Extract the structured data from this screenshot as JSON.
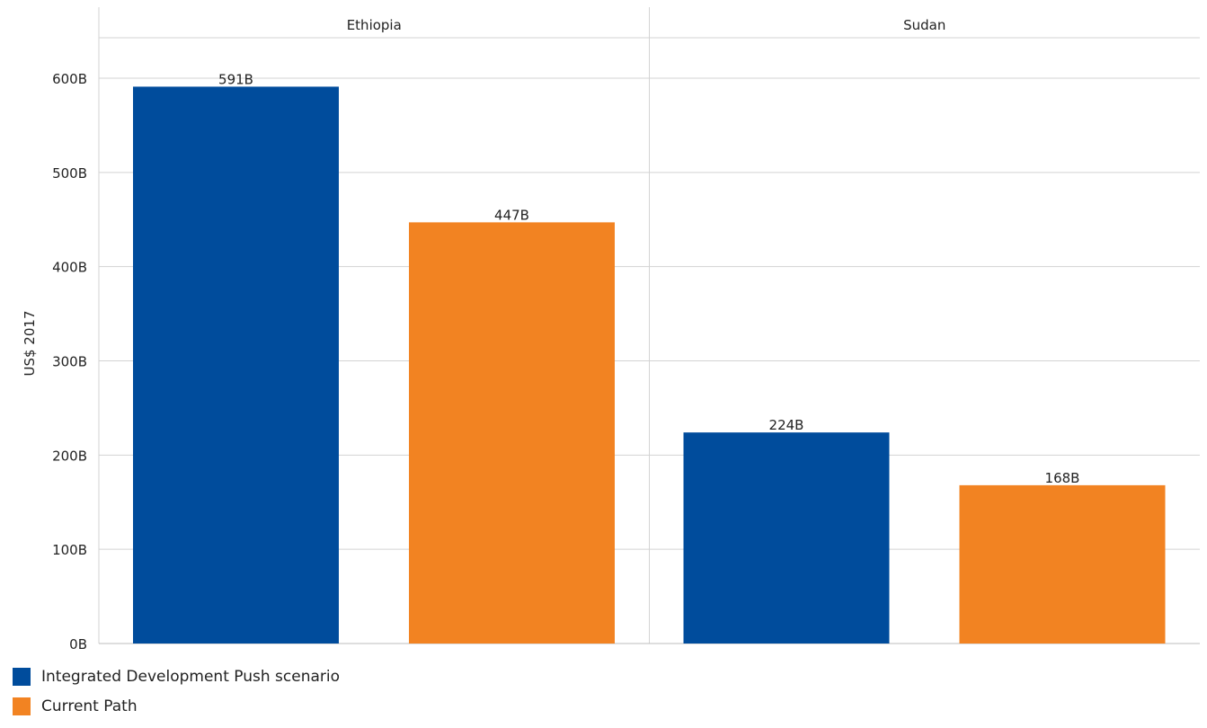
{
  "chart_data": {
    "type": "bar",
    "ylabel": "US$ 2017",
    "panels": [
      "Ethiopia",
      "Sudan"
    ],
    "series": [
      {
        "name": "Integrated Development Push scenario",
        "color": "#004c9c",
        "values": [
          591,
          224
        ]
      },
      {
        "name": "Current Path",
        "color": "#f28322",
        "values": [
          447,
          168
        ]
      }
    ],
    "data_labels": [
      [
        "591B",
        "224B"
      ],
      [
        "447B",
        "168B"
      ]
    ],
    "ylim": [
      0,
      600
    ],
    "yticks": [
      0,
      100,
      200,
      300,
      400,
      500,
      600
    ],
    "ytick_labels": [
      "0B",
      "100B",
      "200B",
      "300B",
      "400B",
      "500B",
      "600B"
    ],
    "grid": true,
    "legend_position": "bottom-left"
  }
}
